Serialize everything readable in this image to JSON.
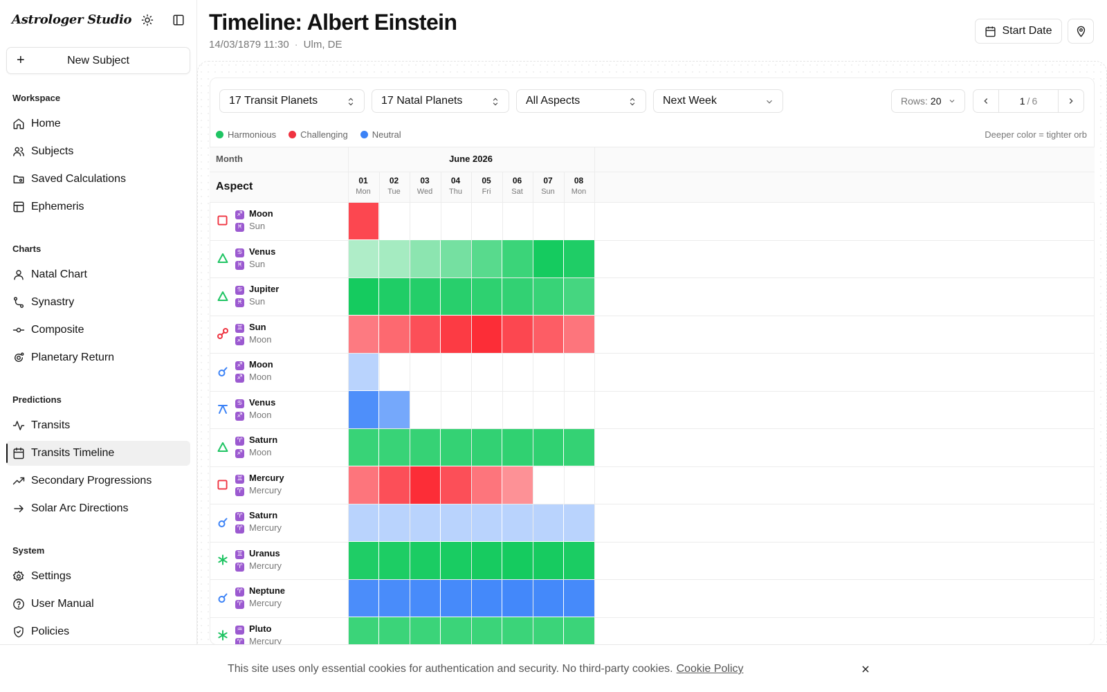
{
  "app": {
    "brand": "Astrologer Studio"
  },
  "sidebar": {
    "new_subject": "New Subject",
    "sections": [
      {
        "label": "Workspace",
        "items": [
          {
            "label": "Home",
            "icon": "home-icon"
          },
          {
            "label": "Subjects",
            "icon": "users-icon"
          },
          {
            "label": "Saved Calculations",
            "icon": "folder-icon"
          },
          {
            "label": "Ephemeris",
            "icon": "table-icon"
          }
        ]
      },
      {
        "label": "Charts",
        "items": [
          {
            "label": "Natal Chart",
            "icon": "user-icon"
          },
          {
            "label": "Synastry",
            "icon": "git-link-icon"
          },
          {
            "label": "Composite",
            "icon": "commit-icon"
          },
          {
            "label": "Planetary Return",
            "icon": "orbit-icon"
          }
        ]
      },
      {
        "label": "Predictions",
        "items": [
          {
            "label": "Transits",
            "icon": "activity-icon"
          },
          {
            "label": "Transits Timeline",
            "icon": "calendar-icon",
            "active": true
          },
          {
            "label": "Secondary Progressions",
            "icon": "trending-up-icon"
          },
          {
            "label": "Solar Arc Directions",
            "icon": "arrow-right-icon"
          }
        ]
      },
      {
        "label": "System",
        "items": [
          {
            "label": "Settings",
            "icon": "gear-icon"
          },
          {
            "label": "User Manual",
            "icon": "help-icon"
          },
          {
            "label": "Policies",
            "icon": "shield-icon"
          }
        ]
      }
    ]
  },
  "header": {
    "title": "Timeline: Albert Einstein",
    "datetime": "14/03/1879 11:30",
    "separator": "·",
    "location": "Ulm, DE",
    "start_date_label": "Start Date"
  },
  "filters": {
    "transit_planets": "17 Transit Planets",
    "natal_planets": "17 Natal Planets",
    "aspects": "All Aspects",
    "range": "Next Week",
    "rows_label": "Rows:",
    "rows_value": "20",
    "page_current": "1",
    "page_sep": "/",
    "page_total": "6"
  },
  "legend": {
    "items": [
      {
        "label": "Harmonious",
        "color": "#1fc463"
      },
      {
        "label": "Challenging",
        "color": "#ef3340"
      },
      {
        "label": "Neutral",
        "color": "#3b82f6"
      }
    ],
    "note": "Deeper color = tighter orb"
  },
  "grid": {
    "month_header": "Month",
    "aspect_header": "Aspect",
    "month": "June 2026",
    "days": [
      {
        "num": "01",
        "dow": "Mon"
      },
      {
        "num": "02",
        "dow": "Tue"
      },
      {
        "num": "03",
        "dow": "Wed"
      },
      {
        "num": "04",
        "dow": "Thu"
      },
      {
        "num": "05",
        "dow": "Fri"
      },
      {
        "num": "06",
        "dow": "Sat"
      },
      {
        "num": "07",
        "dow": "Sun"
      },
      {
        "num": "08",
        "dow": "Mon"
      }
    ],
    "rows": [
      {
        "aspect": "square",
        "p1": "Moon",
        "s1": "♐",
        "p2": "Sun",
        "s2": "♓",
        "type": "challenging",
        "cells": [
          0.85,
          0,
          0,
          0,
          0,
          0,
          0,
          0
        ]
      },
      {
        "aspect": "trine",
        "p1": "Venus",
        "s1": "♋",
        "p2": "Sun",
        "s2": "♓",
        "type": "harmonious",
        "cells": [
          0.2,
          0.25,
          0.38,
          0.5,
          0.65,
          0.8,
          1.0,
          0.95
        ]
      },
      {
        "aspect": "trine",
        "p1": "Jupiter",
        "s1": "♋",
        "p2": "Sun",
        "s2": "♓",
        "type": "harmonious",
        "cells": [
          1.0,
          0.95,
          0.92,
          0.9,
          0.87,
          0.85,
          0.82,
          0.75
        ]
      },
      {
        "aspect": "opposition",
        "p1": "Sun",
        "s1": "♊",
        "p2": "Moon",
        "s2": "♐",
        "type": "challenging",
        "cells": [
          0.55,
          0.65,
          0.8,
          0.92,
          1.0,
          0.85,
          0.72,
          0.58
        ]
      },
      {
        "aspect": "conjunction",
        "p1": "Moon",
        "s1": "♐",
        "p2": "Moon",
        "s2": "♐",
        "type": "neutral",
        "cells": [
          0.22,
          0,
          0,
          0,
          0,
          0,
          0,
          0
        ]
      },
      {
        "aspect": "quincunx",
        "p1": "Venus",
        "s1": "♋",
        "p2": "Moon",
        "s2": "♐",
        "type": "neutral",
        "cells": [
          0.9,
          0.65,
          0,
          0,
          0,
          0,
          0,
          0
        ]
      },
      {
        "aspect": "trine",
        "p1": "Saturn",
        "s1": "♈",
        "p2": "Moon",
        "s2": "♐",
        "type": "harmonious",
        "cells": [
          0.82,
          0.82,
          0.83,
          0.84,
          0.85,
          0.86,
          0.86,
          0.84
        ]
      },
      {
        "aspect": "square",
        "p1": "Mercury",
        "s1": "♊",
        "p2": "Mercury",
        "s2": "♈",
        "type": "challenging",
        "cells": [
          0.58,
          0.8,
          1.0,
          0.8,
          0.58,
          0.42,
          0,
          0
        ]
      },
      {
        "aspect": "conjunction",
        "p1": "Saturn",
        "s1": "♈",
        "p2": "Mercury",
        "s2": "♈",
        "type": "neutral",
        "cells": [
          0.22,
          0.22,
          0.22,
          0.22,
          0.22,
          0.22,
          0.22,
          0.22
        ]
      },
      {
        "aspect": "sextile",
        "p1": "Uranus",
        "s1": "♊",
        "p2": "Mercury",
        "s2": "♈",
        "type": "harmonious",
        "cells": [
          0.95,
          0.96,
          0.97,
          0.98,
          0.99,
          1.0,
          0.99,
          0.97
        ]
      },
      {
        "aspect": "conjunction",
        "p1": "Neptune",
        "s1": "♈",
        "p2": "Mercury",
        "s2": "♈",
        "type": "neutral",
        "cells": [
          0.92,
          0.93,
          0.94,
          0.95,
          0.96,
          0.97,
          0.96,
          0.95
        ]
      },
      {
        "aspect": "sextile",
        "p1": "Pluto",
        "s1": "♒",
        "p2": "Mercury",
        "s2": "♈",
        "type": "harmonious",
        "cells": [
          0.8,
          0.8,
          0.8,
          0.8,
          0.8,
          0.8,
          0.8,
          0.8
        ]
      }
    ]
  },
  "cookie": {
    "text": "This site uses only essential cookies for authentication and security. No third-party cookies.",
    "link": "Cookie Policy"
  }
}
